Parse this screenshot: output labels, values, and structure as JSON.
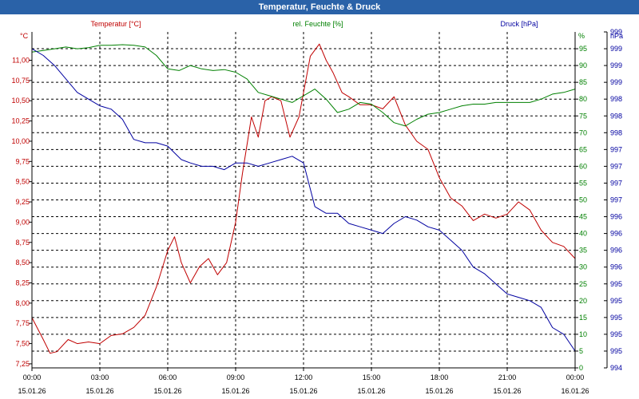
{
  "window": {
    "title": "Temperatur, Feuchte & Druck"
  },
  "colors": {
    "temperature": "#c00000",
    "humidity": "#008000",
    "pressure": "#0000a0",
    "grid": "#000000",
    "titlebar": "#2a62a8"
  },
  "chart_data": {
    "type": "line",
    "title": "Temperatur, Feuchte & Druck",
    "x_ticks": [
      {
        "time": "00:00",
        "date": "15.01.26"
      },
      {
        "time": "03:00",
        "date": "15.01.26"
      },
      {
        "time": "06:00",
        "date": "15.01.26"
      },
      {
        "time": "09:00",
        "date": "15.01.26"
      },
      {
        "time": "12:00",
        "date": "15.01.26"
      },
      {
        "time": "15:00",
        "date": "15.01.26"
      },
      {
        "time": "18:00",
        "date": "15.01.26"
      },
      {
        "time": "21:00",
        "date": "15.01.26"
      },
      {
        "time": "00:00",
        "date": "16.01.26"
      }
    ],
    "xlim": [
      0,
      24
    ],
    "axes": {
      "temperature": {
        "label": "Temperatur [°C]",
        "unit": "°C",
        "ylim": [
          7.2,
          11.35
        ],
        "ticks": [
          "7,25",
          "7,50",
          "7,75",
          "8,00",
          "8,25",
          "8,50",
          "8,75",
          "9,00",
          "9,25",
          "9,50",
          "9,75",
          "10,00",
          "10,25",
          "10,50",
          "10,75",
          "11,00"
        ],
        "tick_values": [
          7.25,
          7.5,
          7.75,
          8.0,
          8.25,
          8.5,
          8.75,
          9.0,
          9.25,
          9.5,
          9.75,
          10.0,
          10.25,
          10.5,
          10.75,
          11.0
        ]
      },
      "humidity": {
        "label": "rel. Feuchte [%]",
        "unit": "%",
        "ylim": [
          0,
          100
        ],
        "ticks": [
          "0",
          "5",
          "10",
          "15",
          "20",
          "25",
          "30",
          "35",
          "40",
          "45",
          "50",
          "55",
          "60",
          "65",
          "70",
          "75",
          "80",
          "85",
          "90",
          "95"
        ],
        "tick_values": [
          0,
          5,
          10,
          15,
          20,
          25,
          30,
          35,
          40,
          45,
          50,
          55,
          60,
          65,
          70,
          75,
          80,
          85,
          90,
          95
        ]
      },
      "pressure": {
        "label": "Druck [hPa]",
        "unit": "hPa",
        "ylim": [
          0,
          100
        ],
        "ticks": [
          "994",
          "995",
          "995",
          "995",
          "995",
          "995",
          "996",
          "996",
          "996",
          "996",
          "997",
          "997",
          "997",
          "997",
          "998",
          "998",
          "998",
          "999",
          "999",
          "999",
          "999"
        ],
        "tick_values": [
          0,
          5,
          10,
          15,
          20,
          25,
          30,
          35,
          40,
          45,
          50,
          55,
          60,
          65,
          70,
          75,
          80,
          85,
          90,
          95,
          100
        ]
      }
    },
    "series": [
      {
        "name": "Temperatur [°C]",
        "axis": "temperature",
        "color": "#c00000",
        "x": [
          0,
          0.5,
          0.8,
          1.1,
          1.6,
          2.0,
          2.5,
          3.0,
          3.5,
          4.0,
          4.5,
          5.0,
          5.5,
          6.0,
          6.3,
          6.6,
          7.0,
          7.4,
          7.8,
          8.2,
          8.6,
          9.0,
          9.3,
          9.7,
          10.0,
          10.3,
          10.6,
          11.0,
          11.4,
          11.8,
          12.0,
          12.3,
          12.7,
          13.0,
          13.3,
          13.7,
          14.0,
          14.5,
          15.0,
          15.5,
          16.0,
          16.5,
          17.0,
          17.5,
          18.0,
          18.5,
          19.0,
          19.5,
          20.0,
          20.5,
          21.0,
          21.5,
          22.0,
          22.5,
          23.0,
          23.5,
          24.0
        ],
        "values": [
          7.82,
          7.55,
          7.38,
          7.4,
          7.55,
          7.5,
          7.52,
          7.5,
          7.6,
          7.62,
          7.7,
          7.85,
          8.2,
          8.65,
          8.82,
          8.5,
          8.25,
          8.45,
          8.55,
          8.35,
          8.5,
          9.0,
          9.6,
          10.3,
          10.05,
          10.5,
          10.55,
          10.5,
          10.05,
          10.3,
          10.6,
          11.05,
          11.2,
          11.0,
          10.85,
          10.6,
          10.55,
          10.45,
          10.45,
          10.4,
          10.55,
          10.2,
          10.0,
          9.9,
          9.55,
          9.3,
          9.2,
          9.02,
          9.1,
          9.05,
          9.1,
          9.25,
          9.15,
          8.9,
          8.75,
          8.7,
          8.55
        ]
      },
      {
        "name": "rel. Feuchte [%]",
        "axis": "humidity",
        "color": "#008000",
        "x": [
          0,
          0.5,
          1.0,
          1.5,
          2.0,
          2.5,
          3.0,
          3.5,
          4.0,
          4.5,
          5.0,
          5.5,
          6.0,
          6.5,
          7.0,
          7.5,
          8.0,
          8.5,
          9.0,
          9.5,
          10.0,
          10.5,
          11.0,
          11.5,
          12.0,
          12.5,
          13.0,
          13.5,
          14.0,
          14.5,
          15.0,
          15.5,
          16.0,
          16.5,
          17.0,
          17.5,
          18.0,
          18.5,
          19.0,
          19.5,
          20.0,
          20.5,
          21.0,
          21.5,
          22.0,
          22.5,
          23.0,
          23.5,
          24.0
        ],
        "values": [
          94,
          94.5,
          95,
          95.5,
          95,
          95.3,
          96,
          96,
          96.2,
          96,
          95.5,
          93,
          89,
          88.5,
          90,
          89,
          88.5,
          88.8,
          88,
          86,
          82,
          81,
          80,
          79,
          81,
          83,
          80,
          76,
          77,
          79,
          78.5,
          76,
          73,
          72,
          74,
          75.5,
          76,
          77,
          78,
          78.5,
          78.5,
          79,
          79,
          79,
          79,
          80,
          81.5,
          82,
          83
        ]
      },
      {
        "name": "Druck [hPa]",
        "axis": "pressure",
        "color": "#0000a0",
        "x": [
          0,
          0.5,
          1.0,
          1.5,
          2.0,
          2.5,
          3.0,
          3.5,
          4.0,
          4.5,
          5.0,
          5.5,
          6.0,
          6.3,
          6.6,
          7.0,
          7.5,
          8.0,
          8.5,
          9.0,
          9.5,
          10.0,
          10.5,
          11.0,
          11.5,
          12.0,
          12.5,
          13.0,
          13.5,
          14.0,
          14.5,
          15.0,
          15.5,
          16.0,
          16.5,
          17.0,
          17.5,
          18.0,
          18.5,
          19.0,
          19.5,
          20.0,
          20.5,
          21.0,
          21.5,
          22.0,
          22.5,
          23.0,
          23.5,
          24.0
        ],
        "values": [
          95,
          93,
          90,
          86,
          82,
          80,
          78,
          77,
          74,
          68,
          67,
          67,
          66,
          64,
          62,
          61,
          60,
          60,
          59,
          61,
          61,
          60,
          61,
          62,
          63,
          61,
          48,
          46,
          46,
          43,
          42,
          41,
          40,
          43,
          45,
          44,
          42,
          41,
          38,
          35,
          30,
          28,
          25,
          22,
          21,
          20,
          18,
          12,
          10,
          5
        ]
      }
    ]
  }
}
